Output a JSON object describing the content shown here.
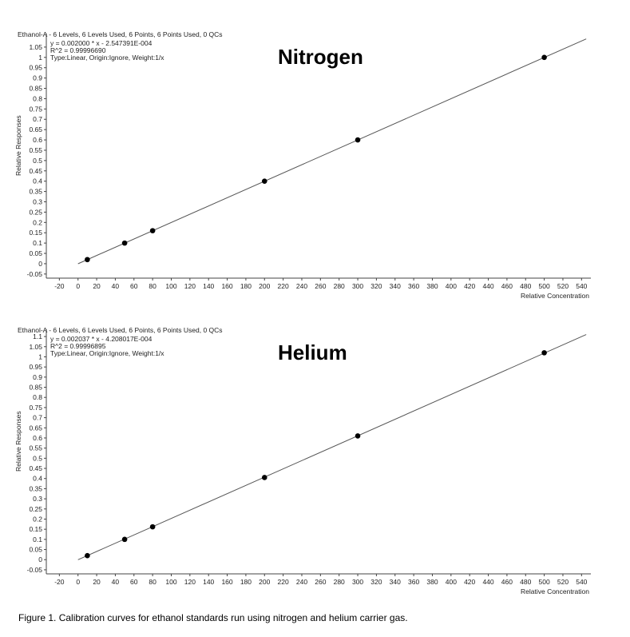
{
  "chart_data": [
    {
      "type": "scatter",
      "title": "Ethanol-A - 6 Levels, 6 Levels Used, 6 Points, 6 Points Used, 0 QCs",
      "equation_lines": [
        "y = 0.002000 * x  - 2.547391E-004",
        "R^2 = 0.99996690",
        "Type:Linear, Origin:Ignore, Weight:1/x"
      ],
      "gas_label": "Nitrogen",
      "xlabel": "Relative Concentration",
      "ylabel": "Relative Responses",
      "xlim": [
        -34,
        550
      ],
      "ylim": [
        -0.07,
        1.1
      ],
      "xticks": [
        -20,
        0,
        20,
        40,
        60,
        80,
        100,
        120,
        140,
        160,
        180,
        200,
        220,
        240,
        260,
        280,
        300,
        320,
        340,
        360,
        380,
        400,
        420,
        440,
        460,
        480,
        500,
        520,
        540
      ],
      "yticks": [
        -0.05,
        0,
        0.05,
        0.1,
        0.15,
        0.2,
        0.25,
        0.3,
        0.35,
        0.4,
        0.45,
        0.5,
        0.55,
        0.6,
        0.65,
        0.7,
        0.75,
        0.8,
        0.85,
        0.9,
        0.95,
        1,
        1.05
      ],
      "ytick_labels": [
        "-0.05",
        "0",
        "0.05",
        "0.1",
        "0.15",
        "0.2",
        "0.25",
        "0.3",
        "0.35",
        "0.4",
        "0.45",
        "0.5",
        "0.55",
        "0.6",
        "0.65",
        "0.7",
        "0.75",
        "0.8",
        "0.85",
        "0.9",
        "0.95",
        "1",
        "1.05"
      ],
      "series": [
        {
          "x": [
            10,
            50,
            80,
            200,
            300,
            500
          ],
          "y": [
            0.02,
            0.1,
            0.16,
            0.4,
            0.6,
            1.0
          ]
        }
      ],
      "fit": {
        "slope": 0.002,
        "intercept": -0.0002547391,
        "x_range": [
          0,
          545
        ]
      }
    },
    {
      "type": "scatter",
      "title": "Ethanol-A - 6 Levels, 6 Levels Used, 6 Points, 6 Points Used, 0 QCs",
      "equation_lines": [
        "y = 0.002037 * x  - 4.208017E-004",
        "R^2 = 0.99996895",
        "Type:Linear, Origin:Ignore, Weight:1/x"
      ],
      "gas_label": "Helium",
      "xlabel": "Relative Concentration",
      "ylabel": "Relative Responses",
      "xlim": [
        -34,
        550
      ],
      "ylim": [
        -0.07,
        1.12
      ],
      "xticks": [
        -20,
        0,
        20,
        40,
        60,
        80,
        100,
        120,
        140,
        160,
        180,
        200,
        220,
        240,
        260,
        280,
        300,
        320,
        340,
        360,
        380,
        400,
        420,
        440,
        460,
        480,
        500,
        520,
        540
      ],
      "yticks": [
        -0.05,
        0,
        0.05,
        0.1,
        0.15,
        0.2,
        0.25,
        0.3,
        0.35,
        0.4,
        0.45,
        0.5,
        0.55,
        0.6,
        0.65,
        0.7,
        0.75,
        0.8,
        0.85,
        0.9,
        0.95,
        1,
        1.05,
        1.1
      ],
      "ytick_labels": [
        "-0.05",
        "0",
        "0.05",
        "0.1",
        "0.15",
        "0.2",
        "0.25",
        "0.3",
        "0.35",
        "0.4",
        "0.45",
        "0.5",
        "0.55",
        "0.6",
        "0.65",
        "0.7",
        "0.75",
        "0.8",
        "0.85",
        "0.9",
        "0.95",
        "1",
        "1.05",
        "1.1"
      ],
      "series": [
        {
          "x": [
            10,
            50,
            80,
            200,
            300,
            500
          ],
          "y": [
            0.02,
            0.1,
            0.162,
            0.405,
            0.61,
            1.02
          ]
        }
      ],
      "fit": {
        "slope": 0.002037,
        "intercept": -0.0004208017,
        "x_range": [
          0,
          545
        ]
      }
    }
  ],
  "caption": "Figure 1. Calibration curves for ethanol standards run using nitrogen and helium carrier gas."
}
